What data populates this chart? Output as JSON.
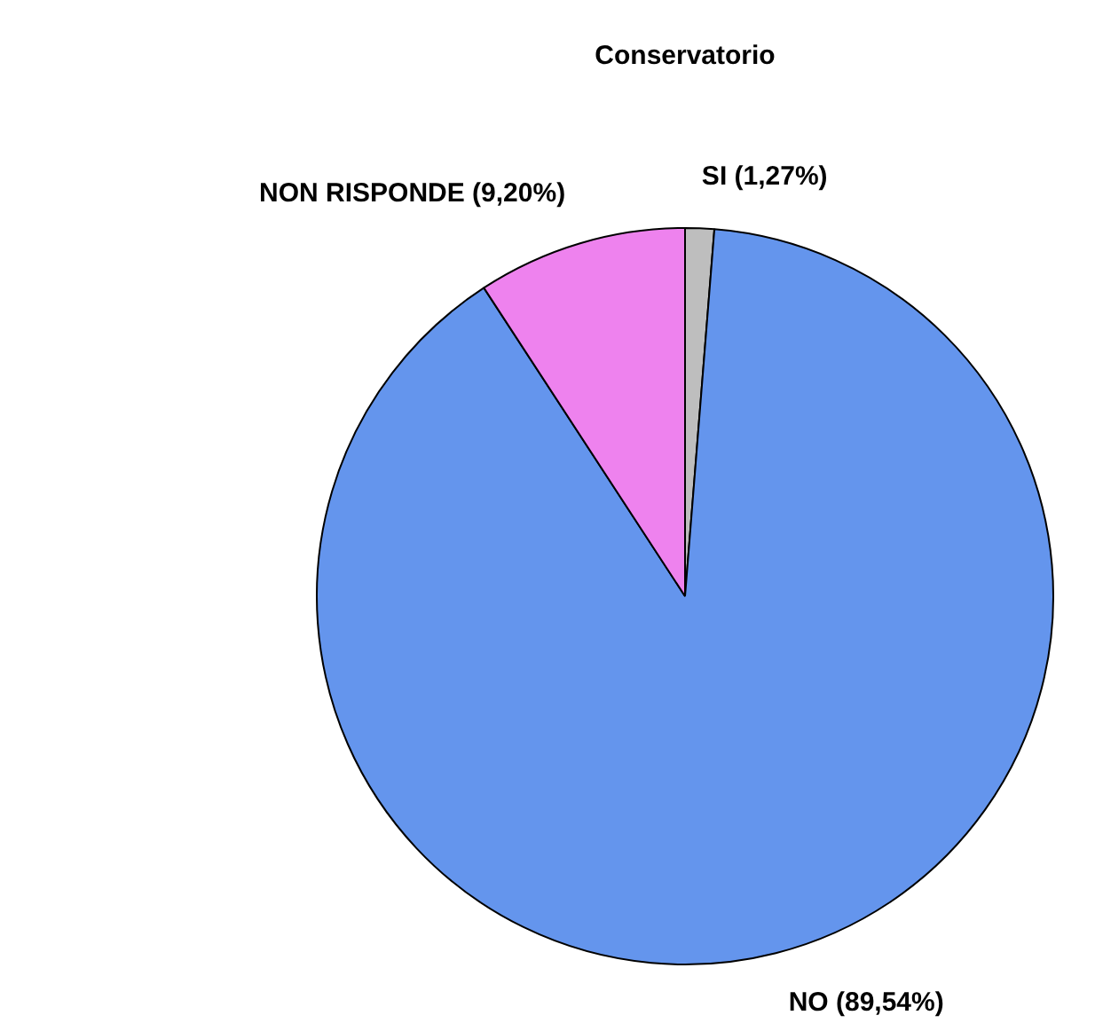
{
  "chart_data": {
    "type": "pie",
    "title": "Conservatorio",
    "categories": [
      "SI",
      "NO",
      "NON RISPONDE"
    ],
    "values": [
      1.27,
      89.54,
      9.2
    ],
    "value_labels": [
      "(1,27%)",
      "(89,54%)",
      "(9,20%)"
    ],
    "colors": [
      "#bebebe",
      "#6495ed",
      "#ee82ee"
    ],
    "legend": false
  }
}
